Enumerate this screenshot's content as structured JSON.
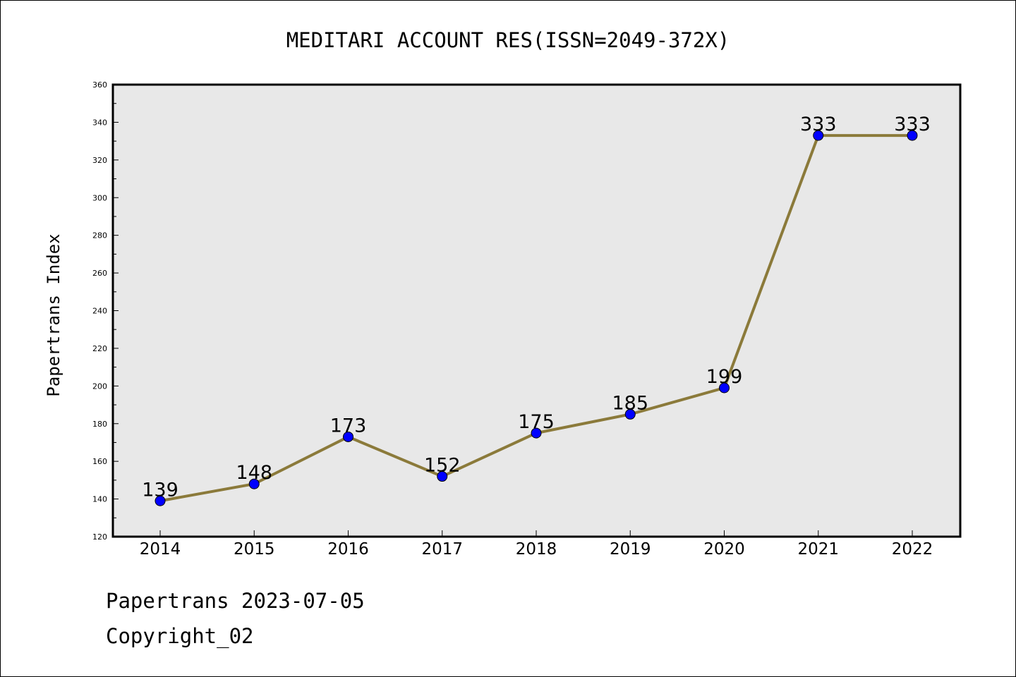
{
  "chart_data": {
    "type": "line",
    "title": "MEDITARI ACCOUNT RES(ISSN=2049-372X)",
    "xlabel": "",
    "ylabel": "Papertrans Index",
    "categories": [
      "2014",
      "2015",
      "2016",
      "2017",
      "2018",
      "2019",
      "2020",
      "2021",
      "2022"
    ],
    "values": [
      139,
      148,
      173,
      152,
      175,
      185,
      199,
      333,
      333
    ],
    "ylim": [
      120,
      360
    ],
    "yticks": [
      120,
      140,
      160,
      180,
      200,
      220,
      240,
      260,
      280,
      300,
      320,
      340,
      360
    ],
    "grid": false,
    "colors": {
      "line": "#8B7A3A",
      "marker": "#0000FF",
      "plot_background": "#E8E8E8"
    }
  },
  "footer": {
    "line1": "Papertrans 2023-07-05",
    "line2": "Copyright_02"
  }
}
